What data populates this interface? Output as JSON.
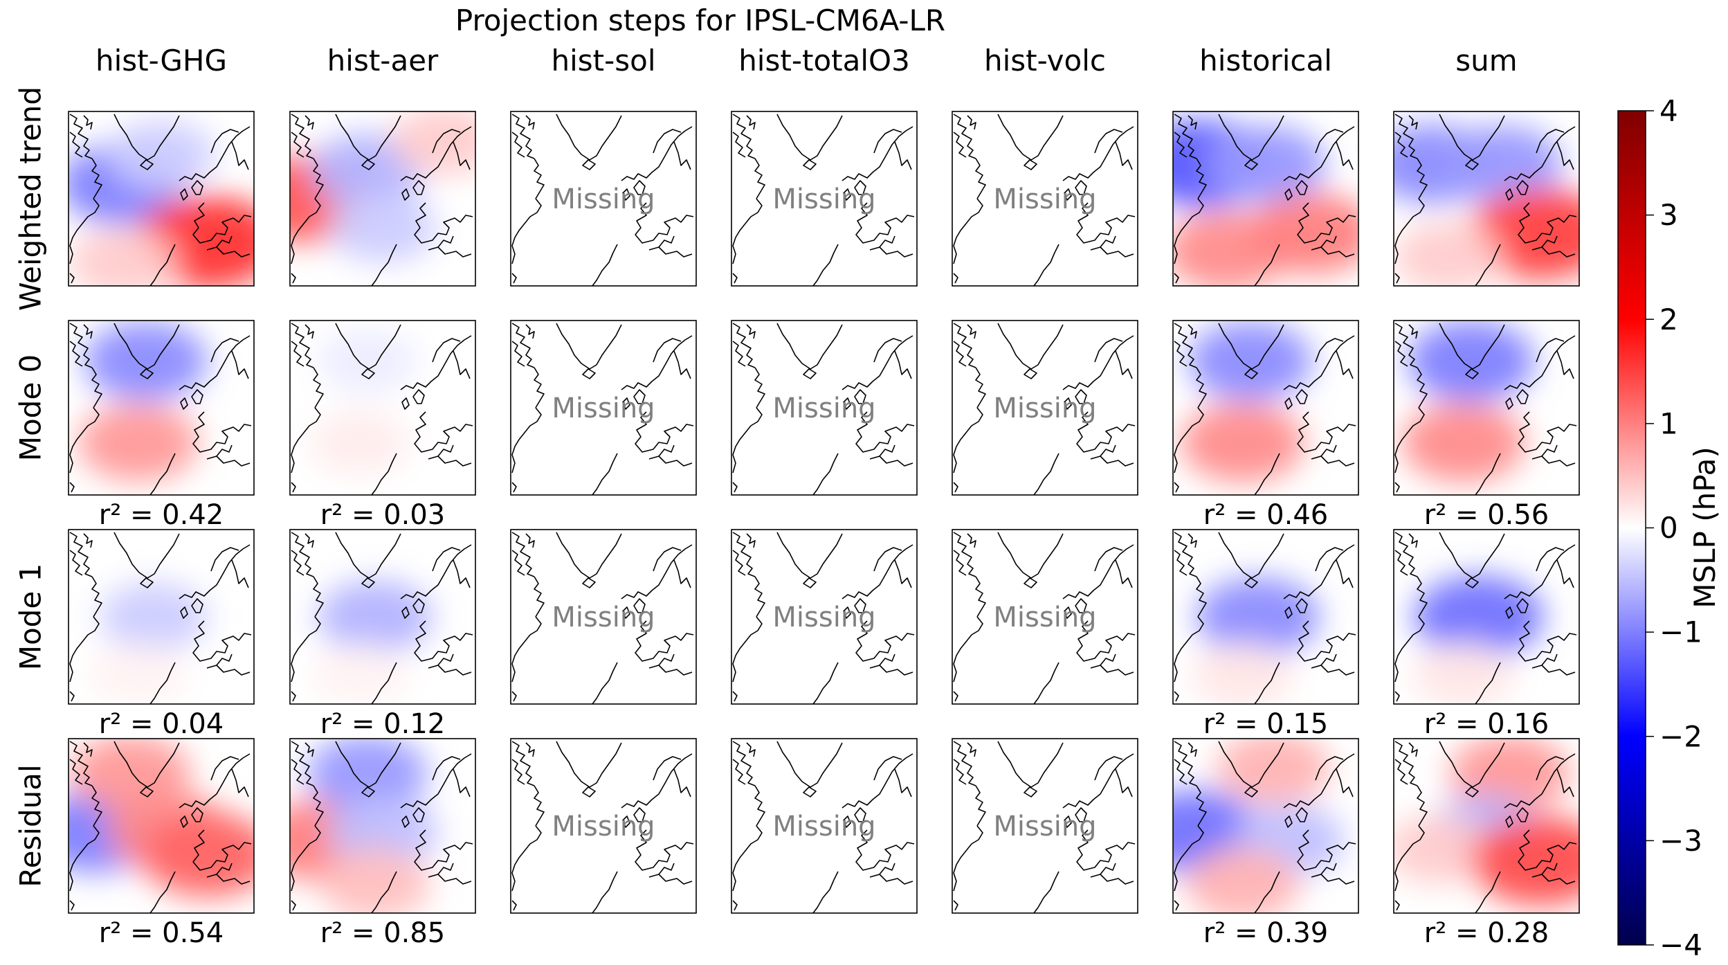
{
  "figure": {
    "title": "Projection steps for IPSL-CM6A-LR",
    "missing_text": "Missing"
  },
  "chart_data": {
    "type": "heatmap",
    "title": "Projection steps for IPSL-CM6A-LR",
    "columns": [
      "hist-GHG",
      "hist-aer",
      "hist-sol",
      "hist-totalO3",
      "hist-volc",
      "historical",
      "sum"
    ],
    "rows": [
      "Weighted trend",
      "Mode 0",
      "Mode 1",
      "Residual"
    ],
    "available": [
      true,
      true,
      false,
      false,
      false,
      true,
      true
    ],
    "r2": {
      "Mode 0": [
        "r² = 0.42",
        "r² = 0.03",
        "",
        "",
        "",
        "r² = 0.46",
        "r² = 0.56"
      ],
      "Mode 1": [
        "r² = 0.04",
        "r² = 0.12",
        "",
        "",
        "",
        "r² = 0.15",
        "r² = 0.16"
      ],
      "Residual": [
        "r² = 0.54",
        "r² = 0.85",
        "",
        "",
        "",
        "r² = 0.39",
        "r² = 0.28"
      ]
    },
    "colorbar": {
      "label": "MSLP (hPa)",
      "range": [
        -4,
        4
      ],
      "ticks": [
        "4",
        "3",
        "2",
        "1",
        "0",
        "−1",
        "−2",
        "−3",
        "−4"
      ],
      "colormap": "seismic",
      "colors": {
        "low": "#00004c",
        "mid_blue": "#0000ff",
        "center": "#ffffff",
        "mid_red": "#ff0000",
        "high": "#800000"
      }
    },
    "fields": {
      "Weighted trend": {
        "hist-GHG": [
          {
            "lon": -45,
            "lat": 55,
            "v": -1.0
          },
          {
            "lon": -20,
            "lat": 65,
            "v": -0.4
          },
          {
            "lon": 10,
            "lat": 35,
            "v": 1.6
          },
          {
            "lon": -45,
            "lat": 28,
            "v": 0.4
          }
        ],
        "hist-aer": [
          {
            "lon": -68,
            "lat": 50,
            "v": 1.3
          },
          {
            "lon": -30,
            "lat": 60,
            "v": -0.6
          },
          {
            "lon": -20,
            "lat": 40,
            "v": -0.4
          },
          {
            "lon": 20,
            "lat": 70,
            "v": 0.4
          }
        ],
        "historical": [
          {
            "lon": -60,
            "lat": 62,
            "v": -1.3
          },
          {
            "lon": -20,
            "lat": 62,
            "v": -0.8
          },
          {
            "lon": -45,
            "lat": 32,
            "v": 0.9
          },
          {
            "lon": 10,
            "lat": 38,
            "v": 1.0
          }
        ],
        "sum": [
          {
            "lon": -55,
            "lat": 62,
            "v": -0.9
          },
          {
            "lon": -10,
            "lat": 62,
            "v": -0.8
          },
          {
            "lon": 15,
            "lat": 38,
            "v": 1.5
          },
          {
            "lon": -45,
            "lat": 30,
            "v": 0.4
          }
        ]
      },
      "Mode 0": {
        "hist-GHG": [
          {
            "lon": -30,
            "lat": 66,
            "v": -0.9
          },
          {
            "lon": -35,
            "lat": 38,
            "v": 0.8
          }
        ],
        "hist-aer": [
          {
            "lon": -30,
            "lat": 66,
            "v": -0.15
          },
          {
            "lon": -35,
            "lat": 38,
            "v": 0.15
          }
        ],
        "historical": [
          {
            "lon": -30,
            "lat": 66,
            "v": -0.9
          },
          {
            "lon": -35,
            "lat": 38,
            "v": 0.9
          }
        ],
        "sum": [
          {
            "lon": -30,
            "lat": 66,
            "v": -1.0
          },
          {
            "lon": -35,
            "lat": 38,
            "v": 0.9
          }
        ]
      },
      "Mode 1": {
        "hist-GHG": [
          {
            "lon": -25,
            "lat": 50,
            "v": -0.4
          },
          {
            "lon": -35,
            "lat": 30,
            "v": 0.1
          }
        ],
        "hist-aer": [
          {
            "lon": -25,
            "lat": 50,
            "v": -0.6
          },
          {
            "lon": -35,
            "lat": 30,
            "v": 0.1
          }
        ],
        "historical": [
          {
            "lon": -25,
            "lat": 50,
            "v": -0.9
          },
          {
            "lon": -35,
            "lat": 30,
            "v": 0.2
          }
        ],
        "sum": [
          {
            "lon": -25,
            "lat": 50,
            "v": -1.1
          },
          {
            "lon": -35,
            "lat": 30,
            "v": 0.2
          }
        ]
      },
      "Residual": {
        "hist-GHG": [
          {
            "lon": -62,
            "lat": 48,
            "v": -1.0
          },
          {
            "lon": -40,
            "lat": 68,
            "v": 0.8
          },
          {
            "lon": -15,
            "lat": 48,
            "v": 0.9
          },
          {
            "lon": 10,
            "lat": 40,
            "v": 1.2
          }
        ],
        "hist-aer": [
          {
            "lon": -60,
            "lat": 45,
            "v": 1.0
          },
          {
            "lon": -30,
            "lat": 68,
            "v": -0.8
          },
          {
            "lon": -20,
            "lat": 48,
            "v": -0.5
          },
          {
            "lon": -25,
            "lat": 30,
            "v": 0.5
          }
        ],
        "historical": [
          {
            "lon": -65,
            "lat": 48,
            "v": -1.1
          },
          {
            "lon": -15,
            "lat": 70,
            "v": 0.6
          },
          {
            "lon": -5,
            "lat": 45,
            "v": -0.5
          },
          {
            "lon": -35,
            "lat": 30,
            "v": 0.6
          }
        ],
        "sum": [
          {
            "lon": -5,
            "lat": 68,
            "v": 0.8
          },
          {
            "lon": -20,
            "lat": 48,
            "v": -0.6
          },
          {
            "lon": -50,
            "lat": 42,
            "v": 0.4
          },
          {
            "lon": 15,
            "lat": 38,
            "v": 1.4
          }
        ]
      }
    }
  }
}
